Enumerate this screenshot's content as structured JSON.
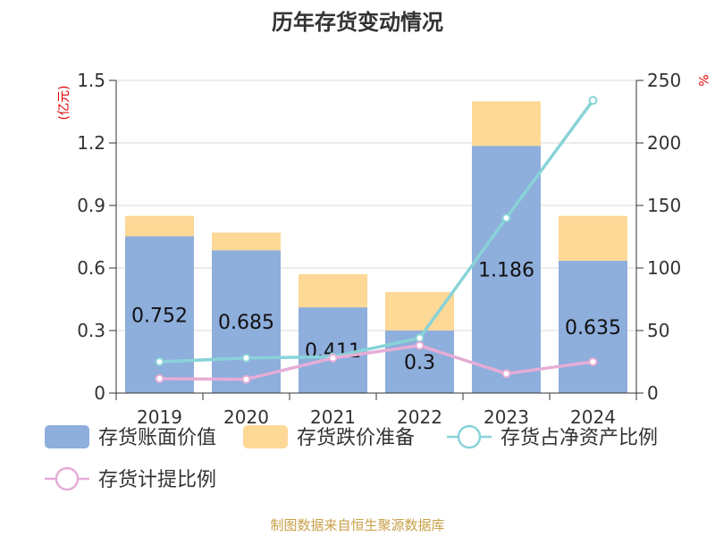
{
  "chart_data": {
    "type": "bar",
    "title": "历年存货变动情况",
    "categories": [
      "2019",
      "2020",
      "2021",
      "2022",
      "2023",
      "2024"
    ],
    "left_axis": {
      "unit": "(亿元)",
      "ticks": [
        "0",
        "0.3",
        "0.6",
        "0.9",
        "1.2",
        "1.5"
      ],
      "ylim": [
        0,
        1.5
      ]
    },
    "right_axis": {
      "unit": "%",
      "ticks": [
        "0",
        "50",
        "100",
        "150",
        "200",
        "250"
      ],
      "ylim": [
        0,
        250
      ]
    },
    "series": [
      {
        "name": "存货账面价值",
        "kind": "bar",
        "axis": "left",
        "color": "#8eaedc",
        "values": [
          0.752,
          0.685,
          0.411,
          0.3,
          1.186,
          0.635
        ],
        "labels": [
          "0.752",
          "0.685",
          "0.411",
          "0.3",
          "1.186",
          "0.635"
        ]
      },
      {
        "name": "存货跌价准备",
        "kind": "bar",
        "axis": "left",
        "color": "#fdd896",
        "values": [
          0.098,
          0.085,
          0.159,
          0.185,
          0.214,
          0.215
        ]
      },
      {
        "name": "存货占净资产比例",
        "kind": "line",
        "axis": "right",
        "color": "#88d3d8",
        "values": [
          25,
          28,
          29,
          44,
          140,
          234
        ]
      },
      {
        "name": "存货计提比例",
        "kind": "line",
        "axis": "right",
        "color": "#e6add6",
        "values": [
          11.5,
          11,
          28,
          38,
          15.5,
          25
        ]
      }
    ],
    "source": "制图数据来自恒生聚源数据库"
  }
}
